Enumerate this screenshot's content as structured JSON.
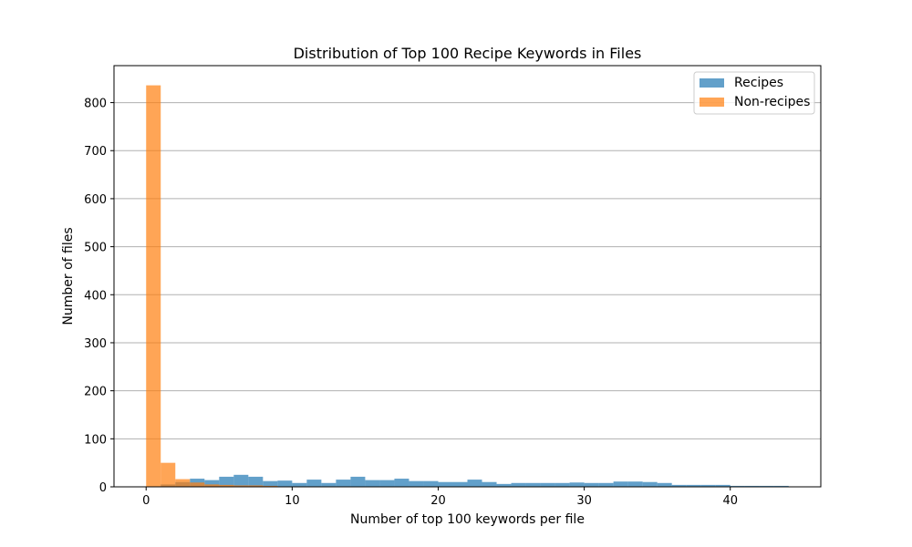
{
  "chart_data": {
    "type": "bar",
    "title": "Distribution of Top 100 Recipe Keywords in Files",
    "xlabel": "Number of top 100 keywords per file",
    "ylabel": "Number of files",
    "xlim": [
      -2.2,
      46.2
    ],
    "ylim": [
      0,
      877
    ],
    "xticks": [
      0,
      10,
      20,
      30,
      40
    ],
    "yticks": [
      0,
      100,
      200,
      300,
      400,
      500,
      600,
      700,
      800
    ],
    "grid": "y",
    "legend_position": "top-right",
    "bin_edges": [
      0,
      1,
      2,
      3,
      4,
      5,
      6,
      7,
      8,
      9,
      10,
      11,
      12,
      13,
      14,
      15,
      16,
      17,
      18,
      19,
      20,
      21,
      22,
      23,
      24,
      25,
      26,
      27,
      28,
      29,
      30,
      31,
      32,
      33,
      34,
      35,
      36,
      37,
      38,
      39,
      40,
      41,
      42,
      43,
      44
    ],
    "series": [
      {
        "name": "Recipes",
        "color": "#1f77b4",
        "opacity": 0.7,
        "values": [
          1,
          5,
          10,
          17,
          14,
          21,
          25,
          21,
          12,
          13,
          8,
          15,
          8,
          15,
          21,
          14,
          14,
          17,
          12,
          12,
          10,
          10,
          15,
          10,
          6,
          8,
          8,
          8,
          8,
          9,
          8,
          8,
          11,
          11,
          10,
          8,
          4,
          4,
          4,
          4,
          2,
          2,
          2,
          2
        ]
      },
      {
        "name": "Non-recipes",
        "color": "#ff7f0e",
        "opacity": 0.7,
        "values": [
          836,
          50,
          16,
          9,
          5,
          4,
          3,
          3,
          2,
          1,
          1,
          1,
          1,
          1,
          0,
          0,
          0,
          0,
          0,
          0,
          0,
          0,
          0,
          0,
          0,
          0,
          0,
          0,
          0,
          0,
          0,
          0,
          0,
          0,
          0,
          0,
          0,
          0,
          0,
          0,
          0,
          0,
          0,
          0
        ]
      }
    ]
  }
}
